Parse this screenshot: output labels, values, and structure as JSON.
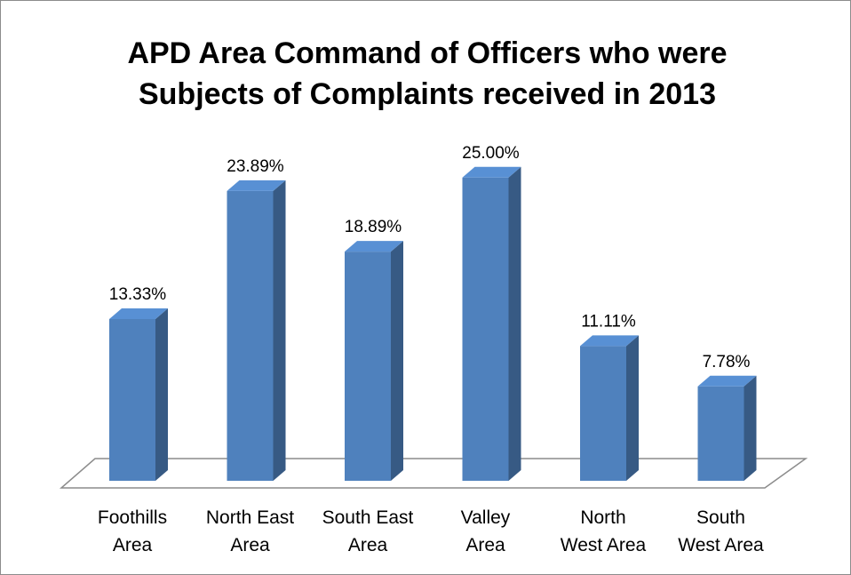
{
  "chart_data": {
    "type": "bar3d",
    "title": "APD Area Command of Officers who were Subjects of Complaints received in 2013",
    "categories": [
      "Foothills\nArea",
      "North East\nArea",
      "South East\nArea",
      "Valley\nArea",
      "North\nWest Area",
      "South\nWest Area"
    ],
    "values": [
      13.33,
      23.89,
      18.89,
      25.0,
      11.11,
      7.78
    ],
    "value_labels": [
      "13.33%",
      "23.89%",
      "18.89%",
      "25.00%",
      "11.11%",
      "7.78%"
    ],
    "color": "#4f81bd"
  }
}
